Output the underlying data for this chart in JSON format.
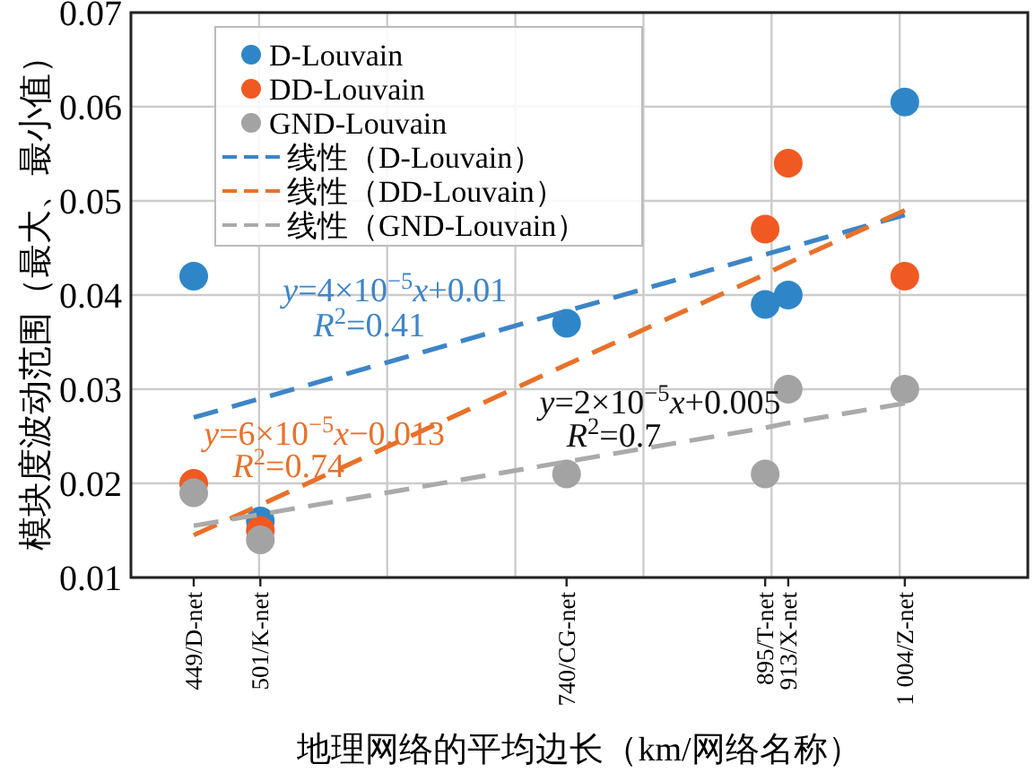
{
  "chart_data": {
    "type": "scatter",
    "xlabel": "地理网络的平均边长（km/网络名称）",
    "ylabel": "模块度波动范围（最大、最小值）",
    "xlim": [
      400,
      1100
    ],
    "ylim": [
      0.01,
      0.07
    ],
    "xticks": [
      {
        "value": 449,
        "label": "449/D-net"
      },
      {
        "value": 501,
        "label": "501/K-net"
      },
      {
        "value": 740,
        "label": "740/CG-net"
      },
      {
        "value": 895,
        "label": "895/T-net"
      },
      {
        "value": 913,
        "label": "913/X-net"
      },
      {
        "value": 1004,
        "label": "1 004/Z-net"
      },
      {
        "value": 500,
        "label": null
      },
      {
        "value": 600,
        "label": null
      },
      {
        "value": 700,
        "label": null
      },
      {
        "value": 800,
        "label": null
      },
      {
        "value": 900,
        "label": null
      },
      {
        "value": 1000,
        "label": null
      }
    ],
    "yticks": [
      0.01,
      0.02,
      0.03,
      0.04,
      0.05,
      0.06,
      0.07
    ],
    "grid": true,
    "legend": "top left",
    "marker": "circle",
    "x": [
      449,
      501,
      740,
      895,
      913,
      1004
    ],
    "series": [
      {
        "name": "D-Louvain",
        "color": "#2e86c8",
        "values": [
          0.042,
          0.016,
          0.037,
          0.039,
          0.04,
          0.0605
        ]
      },
      {
        "name": "DD-Louvain",
        "color": "#f05a22",
        "values": [
          0.02,
          0.015,
          null,
          0.047,
          0.054,
          0.042
        ]
      },
      {
        "name": "GND-Louvain",
        "color": "#a3a3a3",
        "values": [
          0.019,
          0.014,
          0.021,
          0.021,
          0.03,
          0.03
        ]
      },
      {
        "name": "线性（D-Louvain）",
        "type": "line",
        "marker": "none",
        "line_style": "dashed",
        "color": "#3d85c6",
        "values": [
          0.027,
          0.029,
          0.0383,
          0.0443,
          0.045,
          0.0485
        ]
      },
      {
        "name": "线性（DD-Louvain）",
        "type": "line",
        "marker": "none",
        "line_style": "dashed",
        "color": "#e8712a",
        "values": [
          0.0145,
          0.0177,
          0.0326,
          0.0422,
          0.0434,
          0.049
        ]
      },
      {
        "name": "线性（GND-Louvain）",
        "type": "line",
        "marker": "none",
        "line_style": "dashed",
        "color": "#aaaaaa",
        "values": [
          0.0155,
          0.0167,
          0.0223,
          0.0259,
          0.0264,
          0.0285
        ]
      }
    ],
    "annotations": [
      "*y*=4×10$^{−5}$*x*+0.01",
      "*R*$^{2}$=0.41",
      "*y*=6×10$^{−5}$*x*−0.013",
      "*R*$^{2}$=0.74",
      "*y*=2×10$^{−5}$*x*+0.005",
      "*R*$^{2}$=0.7"
    ]
  }
}
